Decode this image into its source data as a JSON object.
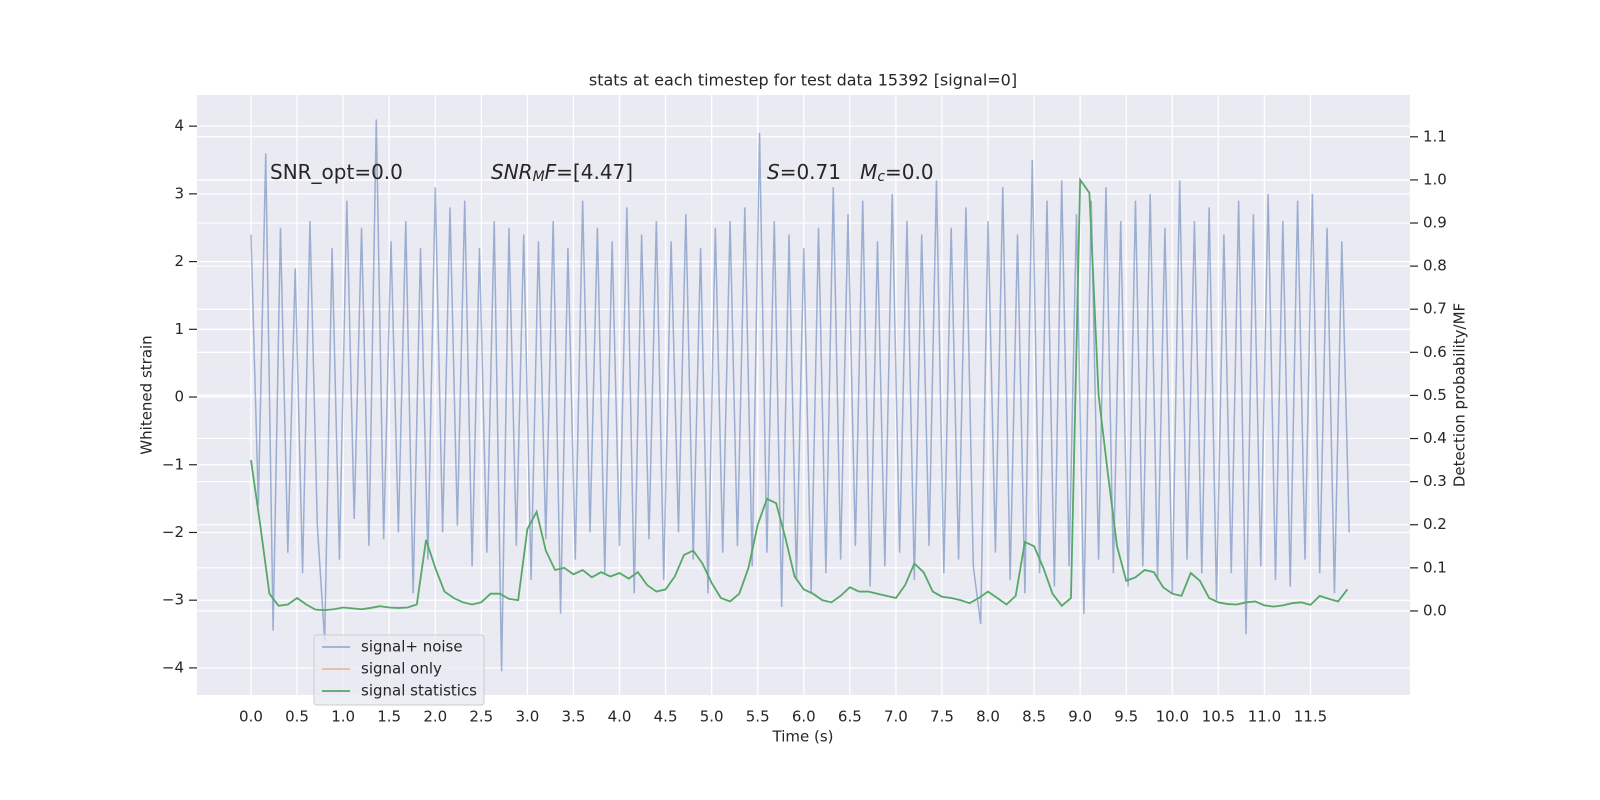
{
  "chart_data": {
    "type": "line",
    "title": "stats at each timestep for test data 15392 [signal=0]",
    "xlabel": "Time (s)",
    "ylabel": "Whitened strain",
    "y2label": "Detection probability/MF",
    "xlim": [
      -0.586,
      12.58
    ],
    "ylim": [
      -4.4,
      4.46
    ],
    "y2lim": [
      -0.195,
      1.197
    ],
    "xticks": [
      {
        "value": 0,
        "label": "0.0"
      },
      0.5,
      {
        "value": 1,
        "label": "1.0"
      },
      1.5,
      {
        "value": 2,
        "label": "2.0"
      },
      2.5,
      {
        "value": 3,
        "label": "3.0"
      },
      3.5,
      {
        "value": 4,
        "label": "4.0"
      },
      4.5,
      {
        "value": 5,
        "label": "5.0"
      },
      5.5,
      {
        "value": 6,
        "label": "6.0"
      },
      6.5,
      {
        "value": 7,
        "label": "7.0"
      },
      7.5,
      {
        "value": 8,
        "label": "8.0"
      },
      8.5,
      {
        "value": 9,
        "label": "9.0"
      },
      9.5,
      {
        "value": 10,
        "label": "10.0"
      },
      10.5,
      {
        "value": 11,
        "label": "11.0"
      },
      11.5
    ],
    "yticks": [
      {
        "value": -4,
        "label": "−4"
      },
      {
        "value": -3,
        "label": "−3"
      },
      {
        "value": -2,
        "label": "−2"
      },
      {
        "value": -1,
        "label": "−1"
      },
      0,
      1,
      2,
      3,
      4
    ],
    "y2ticks": [
      {
        "value": 0,
        "label": "0.0"
      },
      0.1,
      0.2,
      0.3,
      0.4,
      0.5,
      0.6,
      0.7,
      0.8,
      0.9,
      {
        "value": 1,
        "label": "1.0"
      },
      1.1
    ],
    "grid": true,
    "legend": "lower left",
    "annotations": [
      [
        {
          "text": "SNR_opt=0.0",
          "italic": false,
          "sub": false
        }
      ],
      [
        {
          "text": "SNR",
          "italic": true,
          "sub": false
        },
        {
          "text": "M",
          "italic": true,
          "sub": true
        },
        {
          "text": "F",
          "italic": true,
          "sub": false
        },
        {
          "text": "=[4.47]",
          "italic": false,
          "sub": false
        }
      ],
      [
        {
          "text": "S",
          "italic": true,
          "sub": false
        },
        {
          "text": "=0.71   ",
          "italic": false,
          "sub": false
        },
        {
          "text": "M",
          "italic": true,
          "sub": false
        },
        {
          "text": "c",
          "italic": true,
          "sub": true
        },
        {
          "text": "=0.0",
          "italic": false,
          "sub": false
        }
      ]
    ],
    "series": [
      {
        "name": "signal+ noise",
        "color": "#4c72b0",
        "opacity": 0.5,
        "axis": "y",
        "x": [
          0,
          0.08,
          0.16,
          0.24,
          0.32,
          0.4,
          0.48,
          0.56,
          0.64,
          0.72,
          0.8,
          0.88,
          0.96,
          1.04,
          1.12,
          1.2,
          1.28,
          1.36,
          1.44,
          1.52,
          1.6,
          1.68,
          1.76,
          1.84,
          1.92,
          2,
          2.08,
          2.16,
          2.24,
          2.32,
          2.4,
          2.48,
          2.56,
          2.64,
          2.72,
          2.8,
          2.88,
          2.96,
          3.04,
          3.12,
          3.2,
          3.28,
          3.36,
          3.44,
          3.52,
          3.6,
          3.68,
          3.76,
          3.84,
          3.92,
          4,
          4.08,
          4.16,
          4.24,
          4.32,
          4.4,
          4.48,
          4.56,
          4.64,
          4.72,
          4.8,
          4.88,
          4.96,
          5.04,
          5.12,
          5.2,
          5.28,
          5.36,
          5.44,
          5.52,
          5.6,
          5.68,
          5.76,
          5.84,
          5.92,
          6,
          6.08,
          6.16,
          6.24,
          6.32,
          6.4,
          6.48,
          6.56,
          6.64,
          6.72,
          6.8,
          6.88,
          6.96,
          7.04,
          7.12,
          7.2,
          7.28,
          7.36,
          7.44,
          7.52,
          7.6,
          7.68,
          7.76,
          7.84,
          7.92,
          8,
          8.08,
          8.16,
          8.24,
          8.32,
          8.4,
          8.48,
          8.56,
          8.64,
          8.72,
          8.8,
          8.88,
          8.96,
          9.04,
          9.12,
          9.2,
          9.28,
          9.36,
          9.44,
          9.52,
          9.6,
          9.68,
          9.76,
          9.84,
          9.92,
          10,
          10.08,
          10.16,
          10.24,
          10.32,
          10.4,
          10.48,
          10.56,
          10.64,
          10.72,
          10.8,
          10.88,
          10.96,
          11.04,
          11.12,
          11.2,
          11.28,
          11.36,
          11.44,
          11.52,
          11.6,
          11.68,
          11.76,
          11.84,
          11.92
        ],
        "values": [
          2.4,
          -1.6,
          3.6,
          -3.45,
          2.5,
          -2.3,
          1.9,
          -2.6,
          2.6,
          -1.9,
          -3.6,
          2.2,
          -2.4,
          2.9,
          -1.8,
          2.5,
          -2.2,
          4.1,
          -2.1,
          2.3,
          -2.0,
          2.6,
          -2.9,
          2.2,
          -2.4,
          3.1,
          -2.0,
          2.8,
          -1.9,
          2.9,
          -2.5,
          2.2,
          -2.3,
          2.6,
          -4.05,
          2.5,
          -2.2,
          2.4,
          -2.7,
          2.3,
          -2.1,
          2.6,
          -3.2,
          2.2,
          -2.4,
          2.9,
          -2.0,
          2.5,
          -2.6,
          2.3,
          -2.2,
          2.8,
          -2.9,
          2.4,
          -2.1,
          2.6,
          -2.7,
          2.3,
          -2.0,
          2.7,
          -2.4,
          2.2,
          -2.9,
          2.5,
          -2.3,
          2.6,
          -2.2,
          2.8,
          -2.5,
          3.9,
          -2.3,
          2.6,
          -3.1,
          2.4,
          -2.7,
          2.2,
          -2.9,
          2.5,
          -2.6,
          3.1,
          -2.4,
          2.7,
          -2.2,
          2.9,
          -2.8,
          2.3,
          -2.5,
          3.0,
          -2.3,
          2.6,
          -2.7,
          2.4,
          -2.2,
          3.2,
          -2.6,
          2.5,
          -2.4,
          2.8,
          -2.5,
          -3.35,
          2.6,
          -2.3,
          3.1,
          -2.7,
          2.4,
          -2.9,
          3.5,
          -2.6,
          2.9,
          -2.8,
          3.2,
          -2.5,
          2.7,
          -3.2,
          2.9,
          -2.4,
          3.1,
          -2.6,
          2.6,
          -2.8,
          2.9,
          -2.5,
          3.0,
          -2.7,
          2.5,
          -2.9,
          3.2,
          -2.4,
          2.6,
          -2.6,
          2.8,
          -3.0,
          2.4,
          -2.6,
          2.9,
          -3.5,
          2.7,
          -2.5,
          3.0,
          -2.7,
          2.6,
          -2.8,
          2.9,
          -2.4,
          3.0,
          -2.6,
          2.5,
          -2.9,
          2.3,
          -2.0
        ]
      },
      {
        "name": "signal only",
        "color": "#dd8452",
        "opacity": 0.5,
        "axis": "y"
      },
      {
        "name": "signal statistics",
        "color": "#55a868",
        "opacity": 1,
        "axis": "y2",
        "x": [
          0,
          0.1,
          0.2,
          0.3,
          0.4,
          0.5,
          0.6,
          0.7,
          0.8,
          0.9,
          1,
          1.1,
          1.2,
          1.3,
          1.4,
          1.5,
          1.6,
          1.7,
          1.8,
          1.9,
          2,
          2.1,
          2.2,
          2.3,
          2.4,
          2.5,
          2.6,
          2.7,
          2.8,
          2.9,
          3,
          3.1,
          3.2,
          3.3,
          3.4,
          3.5,
          3.6,
          3.7,
          3.8,
          3.9,
          4,
          4.1,
          4.2,
          4.3,
          4.4,
          4.5,
          4.6,
          4.7,
          4.8,
          4.9,
          5,
          5.1,
          5.2,
          5.3,
          5.4,
          5.5,
          5.6,
          5.7,
          5.8,
          5.9,
          6,
          6.1,
          6.2,
          6.3,
          6.4,
          6.5,
          6.6,
          6.7,
          6.8,
          6.9,
          7,
          7.1,
          7.2,
          7.3,
          7.4,
          7.5,
          7.6,
          7.7,
          7.8,
          7.9,
          8,
          8.1,
          8.2,
          8.3,
          8.4,
          8.5,
          8.6,
          8.7,
          8.8,
          8.9,
          9,
          9.1,
          9.2,
          9.3,
          9.4,
          9.5,
          9.6,
          9.7,
          9.8,
          9.9,
          10,
          10.1,
          10.2,
          10.3,
          10.4,
          10.5,
          10.6,
          10.7,
          10.8,
          10.9,
          11,
          11.1,
          11.2,
          11.3,
          11.4,
          11.5,
          11.6,
          11.7,
          11.8,
          11.9
        ],
        "values": [
          0.35,
          0.2,
          0.04,
          0.012,
          0.015,
          0.03,
          0.015,
          0.003,
          0.002,
          0.004,
          0.008,
          0.006,
          0.004,
          0.007,
          0.011,
          0.008,
          0.007,
          0.008,
          0.015,
          0.165,
          0.1,
          0.045,
          0.03,
          0.02,
          0.015,
          0.02,
          0.04,
          0.04,
          0.028,
          0.025,
          0.19,
          0.23,
          0.14,
          0.095,
          0.1,
          0.085,
          0.095,
          0.078,
          0.09,
          0.08,
          0.088,
          0.075,
          0.09,
          0.06,
          0.045,
          0.05,
          0.08,
          0.13,
          0.14,
          0.11,
          0.065,
          0.03,
          0.022,
          0.04,
          0.1,
          0.2,
          0.26,
          0.25,
          0.17,
          0.08,
          0.05,
          0.04,
          0.025,
          0.02,
          0.035,
          0.055,
          0.045,
          0.045,
          0.04,
          0.035,
          0.03,
          0.06,
          0.11,
          0.09,
          0.045,
          0.033,
          0.03,
          0.025,
          0.018,
          0.03,
          0.045,
          0.03,
          0.015,
          0.035,
          0.16,
          0.15,
          0.1,
          0.04,
          0.012,
          0.03,
          1.0,
          0.97,
          0.5,
          0.32,
          0.15,
          0.07,
          0.078,
          0.095,
          0.09,
          0.055,
          0.04,
          0.035,
          0.088,
          0.07,
          0.03,
          0.02,
          0.016,
          0.015,
          0.02,
          0.022,
          0.013,
          0.01,
          0.013,
          0.018,
          0.02,
          0.014,
          0.035,
          0.028,
          0.022,
          0.05
        ]
      }
    ]
  }
}
